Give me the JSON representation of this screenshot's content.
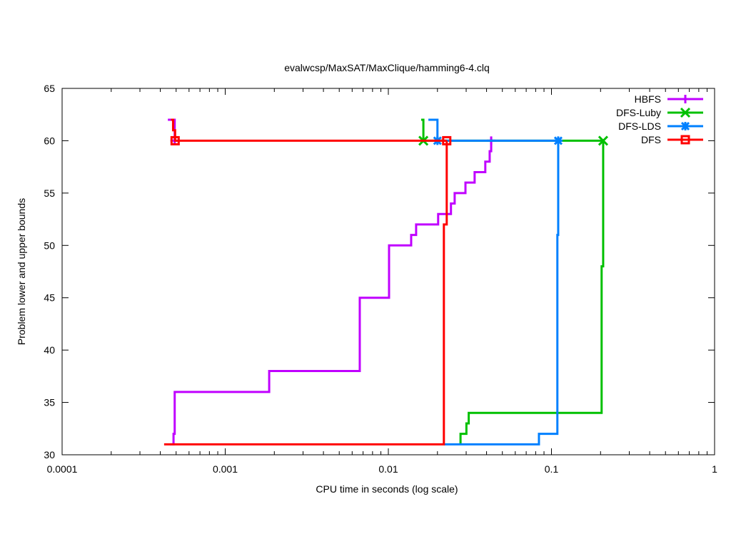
{
  "chart_data": {
    "type": "line",
    "title": "evalwcsp/MaxSAT/MaxClique/hamming6-4.clq",
    "xlabel": "CPU time in seconds (log scale)",
    "ylabel": "Problem lower and upper bounds",
    "xscale": "log",
    "xlim": [
      0.0001,
      1
    ],
    "ylim": [
      30,
      65
    ],
    "xticks": [
      {
        "v": 0.0001,
        "label": "0.0001"
      },
      {
        "v": 0.001,
        "label": "0.001"
      },
      {
        "v": 0.01,
        "label": "0.01"
      },
      {
        "v": 0.1,
        "label": "0.1"
      },
      {
        "v": 1,
        "label": "1"
      }
    ],
    "yticks": [
      {
        "v": 30,
        "label": "30"
      },
      {
        "v": 35,
        "label": "35"
      },
      {
        "v": 40,
        "label": "40"
      },
      {
        "v": 45,
        "label": "45"
      },
      {
        "v": 50,
        "label": "50"
      },
      {
        "v": 55,
        "label": "55"
      },
      {
        "v": 60,
        "label": "60"
      },
      {
        "v": 65,
        "label": "65"
      }
    ],
    "legend": "top-right",
    "series": [
      {
        "name": "HBFS",
        "color": "#c000ff",
        "marker": "plus",
        "upper": [
          [
            0.000445,
            62
          ],
          [
            0.00049,
            62
          ],
          [
            0.00049,
            60
          ]
        ],
        "lower": [
          [
            0.000458,
            31
          ],
          [
            0.000482,
            31
          ],
          [
            0.000482,
            32
          ],
          [
            0.00049,
            32
          ],
          [
            0.00049,
            36
          ],
          [
            0.00186,
            36
          ],
          [
            0.00186,
            38
          ],
          [
            0.00668,
            38
          ],
          [
            0.00668,
            45
          ],
          [
            0.0101,
            45
          ],
          [
            0.0101,
            50
          ],
          [
            0.0138,
            50
          ],
          [
            0.0138,
            51
          ],
          [
            0.0148,
            51
          ],
          [
            0.0148,
            52
          ],
          [
            0.0202,
            52
          ],
          [
            0.0202,
            53
          ],
          [
            0.0242,
            53
          ],
          [
            0.0242,
            54
          ],
          [
            0.0255,
            54
          ],
          [
            0.0255,
            55
          ],
          [
            0.0297,
            55
          ],
          [
            0.0297,
            56
          ],
          [
            0.0338,
            56
          ],
          [
            0.0338,
            57
          ],
          [
            0.0393,
            57
          ],
          [
            0.0393,
            58
          ],
          [
            0.0418,
            58
          ],
          [
            0.0418,
            59
          ],
          [
            0.0427,
            59
          ],
          [
            0.0427,
            60.3
          ]
        ],
        "markers": [
          [
            0.00049,
            60
          ],
          [
            0.0427,
            60
          ]
        ]
      },
      {
        "name": "DFS-Luby",
        "color": "#00c000",
        "marker": "x",
        "upper": [
          [
            0.0159,
            62
          ],
          [
            0.0164,
            62
          ],
          [
            0.0164,
            60
          ],
          [
            0.2075,
            60
          ]
        ],
        "lower": [
          [
            0.0277,
            31
          ],
          [
            0.0277,
            32
          ],
          [
            0.0301,
            32
          ],
          [
            0.0301,
            33
          ],
          [
            0.0311,
            33
          ],
          [
            0.0311,
            34
          ],
          [
            0.203,
            34
          ],
          [
            0.203,
            48
          ],
          [
            0.2075,
            48
          ],
          [
            0.2075,
            60
          ]
        ],
        "markers": [
          [
            0.0164,
            60
          ],
          [
            0.2075,
            60
          ]
        ]
      },
      {
        "name": "DFS-LDS",
        "color": "#0080ff",
        "marker": "star",
        "upper": [
          [
            0.0176,
            62
          ],
          [
            0.02,
            62
          ],
          [
            0.02,
            60
          ],
          [
            0.11,
            60
          ]
        ],
        "lower": [
          [
            0.0219,
            31
          ],
          [
            0.0838,
            31
          ],
          [
            0.0838,
            32
          ],
          [
            0.1087,
            32
          ],
          [
            0.1087,
            51
          ],
          [
            0.11,
            51
          ],
          [
            0.11,
            60
          ]
        ],
        "markers": [
          [
            0.02,
            60
          ],
          [
            0.11,
            60
          ]
        ]
      },
      {
        "name": "DFS",
        "color": "#ff0000",
        "marker": "square",
        "upper": [
          [
            0.000465,
            62
          ],
          [
            0.000479,
            62
          ],
          [
            0.000479,
            61
          ],
          [
            0.000493,
            61
          ],
          [
            0.000493,
            60
          ],
          [
            0.0228,
            60
          ]
        ],
        "lower": [
          [
            0.000422,
            31
          ],
          [
            0.0219,
            31
          ],
          [
            0.0219,
            52
          ],
          [
            0.0228,
            52
          ],
          [
            0.0228,
            60
          ]
        ],
        "markers": [
          [
            0.000493,
            60
          ],
          [
            0.0228,
            60
          ]
        ]
      }
    ]
  }
}
